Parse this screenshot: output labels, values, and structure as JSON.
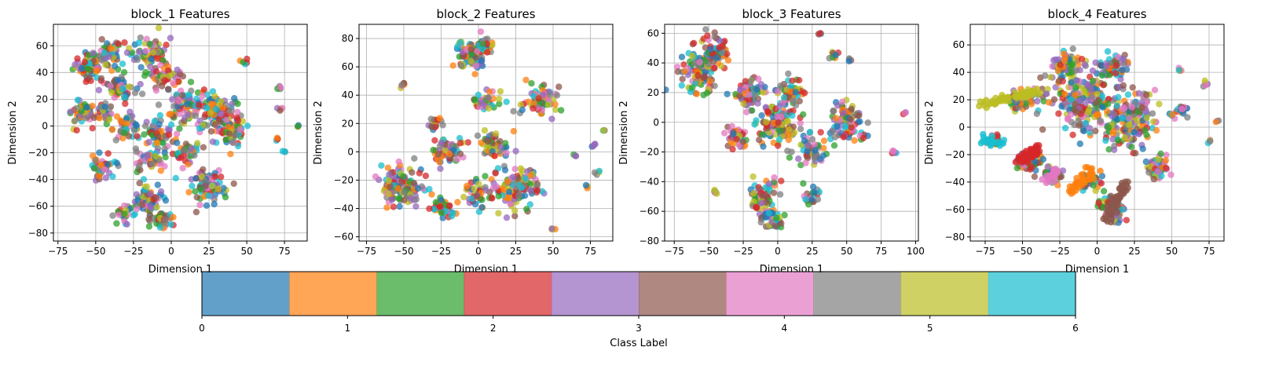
{
  "chart_data": [
    {
      "type": "scatter",
      "title": "block_1 Features",
      "xlabel": "Dimension 1",
      "ylabel": "Dimension 2",
      "xlim": [
        -78,
        90
      ],
      "ylim": [
        -86,
        76
      ],
      "xticks": [
        -75,
        -50,
        -25,
        0,
        25,
        50,
        75
      ],
      "yticks": [
        -80,
        -60,
        -40,
        -20,
        0,
        20,
        40,
        60
      ],
      "grid": true,
      "clusters": [
        {
          "x": -55,
          "y": 45,
          "r": 9,
          "n": 70
        },
        {
          "x": -40,
          "y": 55,
          "r": 7,
          "n": 45
        },
        {
          "x": -35,
          "y": 30,
          "r": 10,
          "n": 60
        },
        {
          "x": -15,
          "y": 55,
          "r": 12,
          "n": 70
        },
        {
          "x": -5,
          "y": 35,
          "r": 10,
          "n": 50
        },
        {
          "x": -60,
          "y": 10,
          "r": 8,
          "n": 45
        },
        {
          "x": -45,
          "y": 10,
          "r": 7,
          "n": 35
        },
        {
          "x": -30,
          "y": 0,
          "r": 8,
          "n": 40
        },
        {
          "x": -10,
          "y": -5,
          "r": 12,
          "n": 60
        },
        {
          "x": 10,
          "y": 15,
          "r": 12,
          "n": 70
        },
        {
          "x": 30,
          "y": 10,
          "r": 14,
          "n": 110
        },
        {
          "x": 40,
          "y": -5,
          "r": 9,
          "n": 50
        },
        {
          "x": -45,
          "y": -30,
          "r": 8,
          "n": 45
        },
        {
          "x": -15,
          "y": -25,
          "r": 9,
          "n": 45
        },
        {
          "x": 10,
          "y": -20,
          "r": 8,
          "n": 40
        },
        {
          "x": 25,
          "y": -45,
          "r": 12,
          "n": 80
        },
        {
          "x": -15,
          "y": -55,
          "r": 10,
          "n": 60
        },
        {
          "x": -5,
          "y": -70,
          "r": 7,
          "n": 40
        },
        {
          "x": -30,
          "y": -65,
          "r": 6,
          "n": 25
        },
        {
          "x": 72,
          "y": 29,
          "r": 1.5,
          "n": 5
        },
        {
          "x": 72,
          "y": 12,
          "r": 1.5,
          "n": 4
        },
        {
          "x": 70,
          "y": -9,
          "r": 1.5,
          "n": 4
        },
        {
          "x": 75,
          "y": -19,
          "r": 1,
          "n": 3
        },
        {
          "x": 84,
          "y": 0,
          "r": 1,
          "n": 3
        },
        {
          "x": 48,
          "y": 48,
          "r": 2,
          "n": 5
        }
      ]
    },
    {
      "type": "scatter",
      "title": "block_2 Features",
      "xlabel": "Dimension 1",
      "ylabel": "Dimension 2",
      "xlim": [
        -80,
        90
      ],
      "ylim": [
        -63,
        90
      ],
      "xticks": [
        -75,
        -50,
        -25,
        0,
        25,
        50,
        75
      ],
      "yticks": [
        -60,
        -40,
        -20,
        0,
        20,
        40,
        60,
        80
      ],
      "grid": true,
      "clusters": [
        {
          "x": -5,
          "y": 68,
          "r": 9,
          "n": 80
        },
        {
          "x": 5,
          "y": 75,
          "r": 5,
          "n": 30
        },
        {
          "x": 40,
          "y": 35,
          "r": 10,
          "n": 70
        },
        {
          "x": 5,
          "y": 35,
          "r": 8,
          "n": 40
        },
        {
          "x": -30,
          "y": 20,
          "r": 5,
          "n": 20
        },
        {
          "x": -50,
          "y": -25,
          "r": 13,
          "n": 120
        },
        {
          "x": -20,
          "y": 0,
          "r": 10,
          "n": 60
        },
        {
          "x": 10,
          "y": 5,
          "r": 10,
          "n": 55
        },
        {
          "x": 25,
          "y": -25,
          "r": 14,
          "n": 110
        },
        {
          "x": 0,
          "y": -30,
          "r": 8,
          "n": 40
        },
        {
          "x": -25,
          "y": -40,
          "r": 8,
          "n": 40
        },
        {
          "x": -50,
          "y": 47,
          "r": 2,
          "n": 6
        },
        {
          "x": 50,
          "y": -55,
          "r": 1.5,
          "n": 4
        },
        {
          "x": 77,
          "y": 5,
          "r": 1.5,
          "n": 4
        },
        {
          "x": 80,
          "y": -15,
          "r": 1.5,
          "n": 4
        },
        {
          "x": 73,
          "y": -24,
          "r": 1,
          "n": 3
        },
        {
          "x": 84,
          "y": 15,
          "r": 1,
          "n": 3
        },
        {
          "x": 65,
          "y": -3,
          "r": 1,
          "n": 3
        }
      ]
    },
    {
      "type": "scatter",
      "title": "block_3 Features",
      "xlabel": "Dimension 1",
      "ylabel": "Dimension 2",
      "xlim": [
        -82,
        102
      ],
      "ylim": [
        -80,
        66
      ],
      "xticks": [
        -75,
        -50,
        -25,
        0,
        25,
        50,
        75,
        100
      ],
      "yticks": [
        -80,
        -60,
        -40,
        -20,
        0,
        20,
        40,
        60
      ],
      "grid": true,
      "clusters": [
        {
          "x": -55,
          "y": 35,
          "r": 14,
          "n": 120
        },
        {
          "x": -45,
          "y": 48,
          "r": 8,
          "n": 50
        },
        {
          "x": -20,
          "y": 20,
          "r": 10,
          "n": 60
        },
        {
          "x": 0,
          "y": 0,
          "r": 14,
          "n": 120
        },
        {
          "x": 10,
          "y": 20,
          "r": 9,
          "n": 50
        },
        {
          "x": 50,
          "y": 0,
          "r": 12,
          "n": 90
        },
        {
          "x": 25,
          "y": -20,
          "r": 9,
          "n": 50
        },
        {
          "x": -30,
          "y": -10,
          "r": 8,
          "n": 40
        },
        {
          "x": -10,
          "y": -50,
          "r": 10,
          "n": 70
        },
        {
          "x": -5,
          "y": -65,
          "r": 6,
          "n": 30
        },
        {
          "x": 25,
          "y": -50,
          "r": 5,
          "n": 20
        },
        {
          "x": 40,
          "y": 45,
          "r": 3,
          "n": 8
        },
        {
          "x": 30,
          "y": 60,
          "r": 1.5,
          "n": 4
        },
        {
          "x": 52,
          "y": 42,
          "r": 1.5,
          "n": 4
        },
        {
          "x": 85,
          "y": -20,
          "r": 2,
          "n": 5
        },
        {
          "x": 92,
          "y": 6,
          "r": 1,
          "n": 3
        },
        {
          "x": -45,
          "y": -48,
          "r": 2,
          "n": 5
        }
      ]
    },
    {
      "type": "scatter",
      "title": "block_4 Features",
      "xlabel": "Dimension 1",
      "ylabel": "Dimension 2",
      "xlim": [
        -85,
        85
      ],
      "ylim": [
        -83,
        75
      ],
      "xticks": [
        -75,
        -50,
        -25,
        0,
        25,
        50,
        75
      ],
      "yticks": [
        -80,
        -60,
        -40,
        -20,
        0,
        20,
        40,
        60
      ],
      "grid": true,
      "clusters": [
        {
          "x": -10,
          "y": 20,
          "r": 20,
          "n": 200
        },
        {
          "x": 20,
          "y": 5,
          "r": 18,
          "n": 180
        },
        {
          "x": -20,
          "y": 45,
          "r": 10,
          "n": 60
        },
        {
          "x": 10,
          "y": 45,
          "r": 10,
          "n": 60
        },
        {
          "x": -50,
          "y": 20,
          "r": 8,
          "n": 40
        },
        {
          "x": -45,
          "y": -25,
          "r": 8,
          "n": 60
        },
        {
          "x": -30,
          "y": -35,
          "r": 6,
          "n": 40
        },
        {
          "x": -5,
          "y": -40,
          "r": 6,
          "n": 40
        },
        {
          "x": 10,
          "y": -60,
          "r": 8,
          "n": 60
        },
        {
          "x": 40,
          "y": -30,
          "r": 8,
          "n": 50
        },
        {
          "x": 55,
          "y": 10,
          "r": 5,
          "n": 20
        },
        {
          "x": -70,
          "y": -10,
          "r": 4,
          "n": 25
        },
        {
          "x": 72,
          "y": 32,
          "r": 2,
          "n": 5
        },
        {
          "x": 75,
          "y": -10,
          "r": 1.5,
          "n": 4
        },
        {
          "x": 80,
          "y": 5,
          "r": 1,
          "n": 3
        },
        {
          "x": 55,
          "y": 42,
          "r": 1.5,
          "n": 4
        }
      ],
      "trails": [
        {
          "from": [
            -78,
            16
          ],
          "to": [
            -40,
            26
          ],
          "n": 60,
          "color": "#bcbd22"
        },
        {
          "from": [
            -75,
            -8
          ],
          "to": [
            -62,
            -14
          ],
          "n": 25,
          "color": "#17becf"
        },
        {
          "from": [
            -52,
            -25
          ],
          "to": [
            -38,
            -15
          ],
          "n": 45,
          "color": "#d62728"
        },
        {
          "from": [
            -18,
            -48
          ],
          "to": [
            -2,
            -30
          ],
          "n": 40,
          "color": "#ff7f0e"
        },
        {
          "from": [
            5,
            -70
          ],
          "to": [
            20,
            -40
          ],
          "n": 50,
          "color": "#8c564b"
        },
        {
          "from": [
            -35,
            -40
          ],
          "to": [
            -25,
            -30
          ],
          "n": 25,
          "color": "#e377c2"
        }
      ]
    }
  ],
  "colorbar": {
    "label": "Class Label",
    "ticks": [
      0,
      1,
      2,
      3,
      4,
      5,
      6
    ],
    "range": [
      0,
      6
    ],
    "colors": [
      "#1f77b4",
      "#ff7f0e",
      "#2ca02c",
      "#d62728",
      "#9467bd",
      "#8c564b",
      "#e377c2",
      "#7f7f7f",
      "#bcbd22",
      "#17becf"
    ],
    "alpha": 0.7
  }
}
